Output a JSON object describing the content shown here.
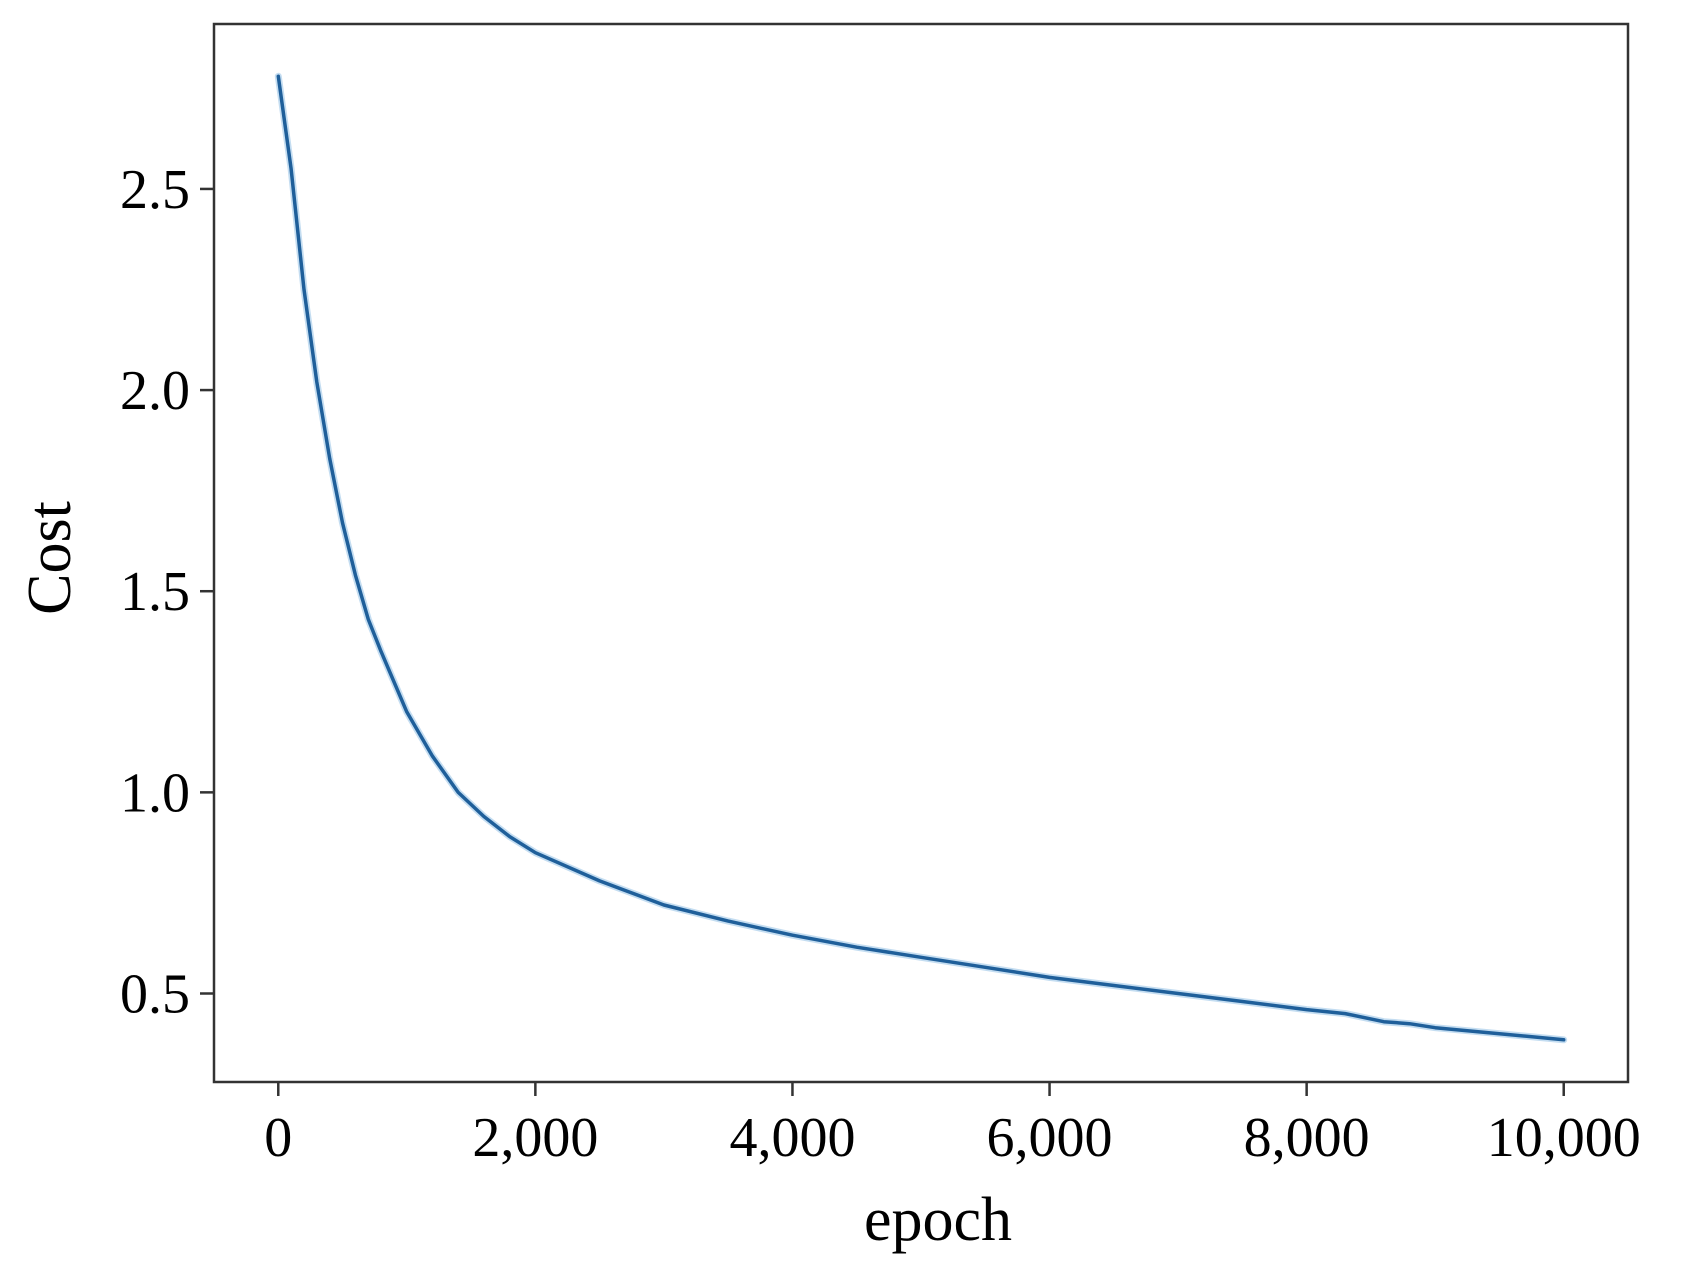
{
  "chart_data": {
    "type": "line",
    "title": "",
    "xlabel": "epoch",
    "ylabel": "Cost",
    "xlim": [
      -500,
      10500
    ],
    "ylim": [
      0.28,
      2.91
    ],
    "x_ticks": [
      0,
      2000,
      4000,
      6000,
      8000,
      10000
    ],
    "x_tick_labels": [
      "0",
      "2,000",
      "4,000",
      "6,000",
      "8,000",
      "10,000"
    ],
    "y_ticks": [
      0.5,
      1.0,
      1.5,
      2.0,
      2.5
    ],
    "y_tick_labels": [
      "0.5",
      "1.0",
      "1.5",
      "2.0",
      "2.5"
    ],
    "grid": false,
    "legend": "none",
    "series": [
      {
        "color": "#1f5f9a",
        "x": [
          0,
          100,
          200,
          300,
          400,
          500,
          600,
          700,
          800,
          1000,
          1200,
          1400,
          1600,
          1800,
          2000,
          2500,
          3000,
          3500,
          4000,
          4500,
          5000,
          5500,
          6000,
          6500,
          7000,
          7500,
          8000,
          8300,
          8600,
          8800,
          9000,
          9500,
          10000
        ],
        "y": [
          2.78,
          2.55,
          2.25,
          2.02,
          1.83,
          1.67,
          1.54,
          1.43,
          1.35,
          1.2,
          1.09,
          1.0,
          0.94,
          0.89,
          0.85,
          0.78,
          0.72,
          0.68,
          0.645,
          0.615,
          0.59,
          0.565,
          0.54,
          0.52,
          0.5,
          0.48,
          0.46,
          0.45,
          0.43,
          0.425,
          0.415,
          0.4,
          0.385
        ]
      }
    ]
  }
}
